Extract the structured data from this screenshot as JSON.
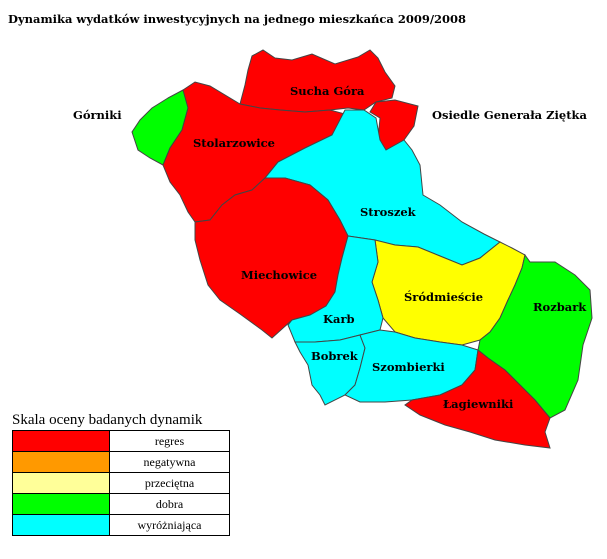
{
  "title": "Dynamika wydatków inwestycyjnych na jednego mieszkańca 2009/2008",
  "colors": {
    "regres": "#ff0000",
    "negatywna": "#ff9900",
    "przecietna": "#ffff00",
    "przecietna_legend": "#ffff99",
    "dobra": "#00ff00",
    "wyrozniajaca": "#00ffff",
    "border": "#444444"
  },
  "districts": [
    {
      "id": "gorniki",
      "label": "Górniki",
      "rating": "dobra"
    },
    {
      "id": "sucha-gora",
      "label": "Sucha Góra",
      "rating": "regres"
    },
    {
      "id": "osiedle-generala-zietka",
      "label": "Osiedle Generała Ziętka",
      "rating": "regres"
    },
    {
      "id": "stolarzowice",
      "label": "Stolarzowice",
      "rating": "regres"
    },
    {
      "id": "stroszek",
      "label": "Stroszek",
      "rating": "wyróżniająca"
    },
    {
      "id": "miechowice",
      "label": "Miechowice",
      "rating": "regres"
    },
    {
      "id": "srodmiescie",
      "label": "Śródmieście",
      "rating": "przeciętna"
    },
    {
      "id": "rozbark",
      "label": "Rozbark",
      "rating": "dobra"
    },
    {
      "id": "karb",
      "label": "Karb",
      "rating": "wyróżniająca"
    },
    {
      "id": "bobrek",
      "label": "Bobrek",
      "rating": "wyróżniająca"
    },
    {
      "id": "szombierki",
      "label": "Szombierki",
      "rating": "wyróżniająca"
    },
    {
      "id": "lagiewniki",
      "label": "Łagiewniki",
      "rating": "regres"
    }
  ],
  "legend": {
    "title": "Skala oceny badanych dynamik",
    "items": [
      {
        "label": "regres",
        "color": "#ff0000"
      },
      {
        "label": "negatywna",
        "color": "#ff9900"
      },
      {
        "label": "przeciętna",
        "color": "#ffff99"
      },
      {
        "label": "dobra",
        "color": "#00ff00"
      },
      {
        "label": "wyróżniająca",
        "color": "#00ffff"
      }
    ]
  }
}
